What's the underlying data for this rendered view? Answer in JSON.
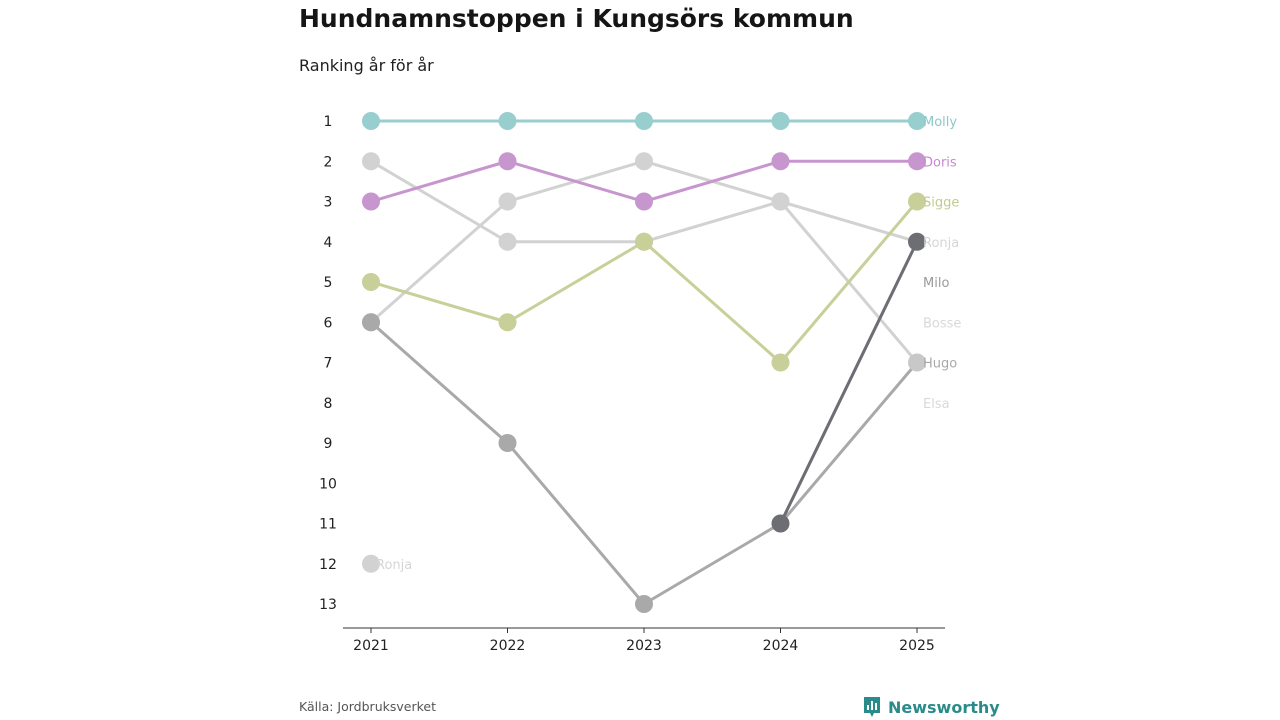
{
  "header": {
    "title": "Hundnamnstoppen i Kungsörs kommun",
    "subtitle": "Ranking år för år"
  },
  "footer": {
    "source": "Källa: Jordbruksverket",
    "brand": "Newsworthy",
    "brand_icon": "bar-chart-icon",
    "brand_color": "#2a8b8a"
  },
  "chart_data": {
    "type": "line",
    "title": "Hundnamnstoppen i Kungsörs kommun",
    "subtitle": "Ranking år för år",
    "xlabel": "",
    "ylabel": "",
    "x": [
      "2021",
      "2022",
      "2023",
      "2024",
      "2025"
    ],
    "y_ticks": [
      1,
      2,
      3,
      4,
      5,
      6,
      7,
      8,
      9,
      10,
      11,
      12,
      13
    ],
    "ylim": [
      1,
      13
    ],
    "y_inverted": true,
    "grid": false,
    "series": [
      {
        "name": "Elsa",
        "values": [
          2,
          4,
          4,
          3,
          7
        ],
        "color": "#d2d2d2",
        "label_color": "#d9d9d9",
        "end_rank": 8,
        "point_years": [
          "2021",
          "2022",
          "2023",
          "2024"
        ]
      },
      {
        "name": "Bosse",
        "values": [
          6,
          3,
          2,
          3,
          4
        ],
        "color": "#d2d2d2",
        "label_color": "#d9d9d9",
        "end_rank": 6,
        "point_years": [
          "2021",
          "2022",
          "2023",
          "2024"
        ]
      },
      {
        "name": "Ronja",
        "values": [
          12,
          null,
          null,
          11,
          4
        ],
        "color": "#d2d2d2",
        "label_color": "#d6d6d6",
        "end_rank": 4,
        "point_years": [
          "2021"
        ],
        "start_label": "Ronja"
      },
      {
        "name": "Milo",
        "values": [
          6,
          9,
          13,
          11,
          7
        ],
        "color": "#a9a9a9",
        "label_color": "#9a9a9a",
        "end_rank": 5,
        "point_years": [
          "2021",
          "2022",
          "2023"
        ]
      },
      {
        "name": "Hugo",
        "values": [
          null,
          null,
          null,
          11,
          4
        ],
        "color": "#6d6d74",
        "label_color": "#a9a9a9",
        "end_rank": 7,
        "point_years": [
          "2024",
          "2025"
        ]
      },
      {
        "name": "Sigge",
        "values": [
          5,
          6,
          4,
          7,
          3
        ],
        "color": "#c9cf99",
        "label_color": "#c4ca8f",
        "end_rank": 3,
        "point_years": [
          "2021",
          "2022",
          "2023",
          "2024",
          "2025"
        ]
      },
      {
        "name": "Doris",
        "values": [
          3,
          2,
          3,
          2,
          2
        ],
        "color": "#c896cf",
        "label_color": "#c48acb",
        "end_rank": 2,
        "point_years": [
          "2021",
          "2022",
          "2023",
          "2024",
          "2025"
        ]
      },
      {
        "name": "Molly",
        "values": [
          1,
          1,
          1,
          1,
          1
        ],
        "color": "#98cece",
        "label_color": "#8cc8c8",
        "end_rank": 1,
        "point_years": [
          "2021",
          "2022",
          "2023",
          "2024",
          "2025"
        ]
      }
    ],
    "extra_points": [
      {
        "year": "2025",
        "rank": 7,
        "color": "#c8c8c8"
      }
    ]
  }
}
